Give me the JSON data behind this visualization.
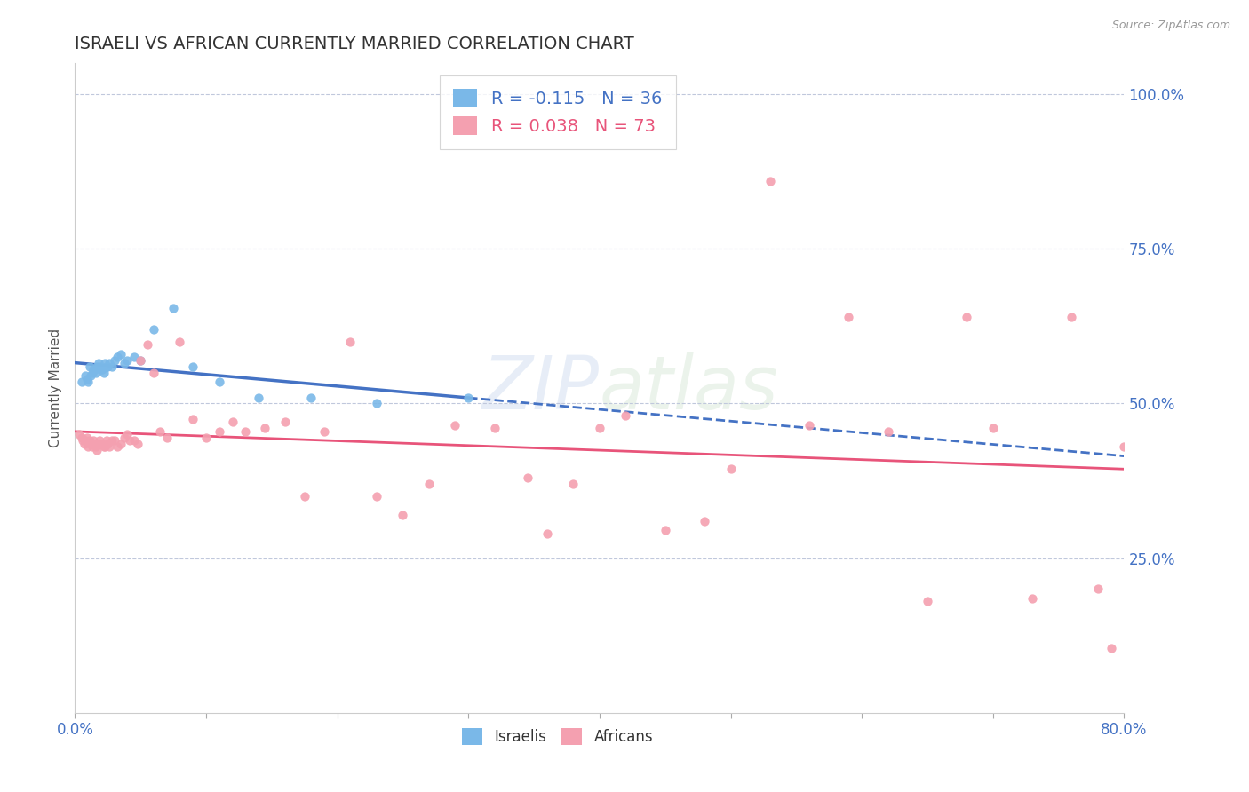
{
  "title": "ISRAELI VS AFRICAN CURRENTLY MARRIED CORRELATION CHART",
  "source": "Source: ZipAtlas.com",
  "ylabel": "Currently Married",
  "xlim": [
    0.0,
    0.8
  ],
  "ylim": [
    0.0,
    1.05
  ],
  "legend_r1": "R = -0.115   N = 36",
  "legend_r2": "R = 0.038   N = 73",
  "israeli_color": "#7ab8e8",
  "african_color": "#f4a0b0",
  "trendline_israeli_color": "#4472c4",
  "trendline_african_color": "#e8547a",
  "axis_color": "#4472c4",
  "grid_color": "#c0c8dc",
  "background_color": "#ffffff",
  "israelis_x": [
    0.005,
    0.008,
    0.009,
    0.01,
    0.011,
    0.012,
    0.013,
    0.014,
    0.015,
    0.016,
    0.017,
    0.018,
    0.019,
    0.02,
    0.021,
    0.022,
    0.023,
    0.024,
    0.025,
    0.026,
    0.028,
    0.03,
    0.032,
    0.035,
    0.038,
    0.04,
    0.045,
    0.05,
    0.06,
    0.075,
    0.09,
    0.11,
    0.14,
    0.18,
    0.23,
    0.3
  ],
  "israelis_y": [
    0.535,
    0.545,
    0.54,
    0.535,
    0.56,
    0.545,
    0.55,
    0.555,
    0.555,
    0.55,
    0.56,
    0.565,
    0.56,
    0.555,
    0.555,
    0.55,
    0.565,
    0.56,
    0.56,
    0.565,
    0.56,
    0.57,
    0.575,
    0.58,
    0.565,
    0.57,
    0.575,
    0.57,
    0.62,
    0.655,
    0.56,
    0.535,
    0.51,
    0.51,
    0.5,
    0.51
  ],
  "africans_x": [
    0.003,
    0.005,
    0.006,
    0.007,
    0.008,
    0.009,
    0.01,
    0.011,
    0.012,
    0.013,
    0.014,
    0.015,
    0.016,
    0.017,
    0.018,
    0.019,
    0.02,
    0.021,
    0.022,
    0.023,
    0.024,
    0.025,
    0.026,
    0.028,
    0.03,
    0.032,
    0.035,
    0.038,
    0.04,
    0.042,
    0.045,
    0.048,
    0.05,
    0.055,
    0.06,
    0.065,
    0.07,
    0.08,
    0.09,
    0.1,
    0.11,
    0.12,
    0.13,
    0.145,
    0.16,
    0.175,
    0.19,
    0.21,
    0.23,
    0.25,
    0.27,
    0.29,
    0.32,
    0.345,
    0.36,
    0.38,
    0.4,
    0.42,
    0.45,
    0.48,
    0.5,
    0.53,
    0.56,
    0.59,
    0.62,
    0.65,
    0.68,
    0.7,
    0.73,
    0.76,
    0.78,
    0.79,
    0.8
  ],
  "africans_y": [
    0.45,
    0.445,
    0.44,
    0.435,
    0.44,
    0.445,
    0.43,
    0.44,
    0.435,
    0.43,
    0.44,
    0.435,
    0.43,
    0.425,
    0.435,
    0.44,
    0.435,
    0.435,
    0.43,
    0.43,
    0.44,
    0.435,
    0.43,
    0.44,
    0.44,
    0.43,
    0.435,
    0.445,
    0.45,
    0.44,
    0.44,
    0.435,
    0.57,
    0.595,
    0.55,
    0.455,
    0.445,
    0.6,
    0.475,
    0.445,
    0.455,
    0.47,
    0.455,
    0.46,
    0.47,
    0.35,
    0.455,
    0.6,
    0.35,
    0.32,
    0.37,
    0.465,
    0.46,
    0.38,
    0.29,
    0.37,
    0.46,
    0.48,
    0.295,
    0.31,
    0.395,
    0.86,
    0.465,
    0.64,
    0.455,
    0.18,
    0.64,
    0.46,
    0.185,
    0.64,
    0.2,
    0.105,
    0.43
  ]
}
